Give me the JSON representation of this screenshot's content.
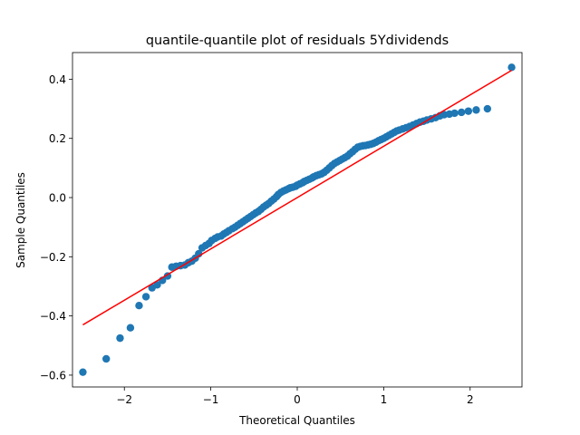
{
  "chart_data": {
    "type": "scatter",
    "title": "quantile-quantile plot of residuals 5Ydividends",
    "xlabel": "Theoretical Quantiles",
    "ylabel": "Sample Quantiles",
    "xlim": [
      -2.6,
      2.6
    ],
    "ylim": [
      -0.64,
      0.49
    ],
    "xticks": [
      -2,
      -1,
      0,
      1,
      2
    ],
    "xtick_labels": [
      "−2",
      "−1",
      "0",
      "1",
      "2"
    ],
    "yticks": [
      -0.6,
      -0.4,
      -0.2,
      0.0,
      0.2,
      0.4
    ],
    "ytick_labels": [
      "−0.6",
      "−0.4",
      "−0.2",
      "0.0",
      "0.2",
      "0.4"
    ],
    "grid": false,
    "marker_color": "#1f77b4",
    "line_color": "#ff0000",
    "series": [
      {
        "type": "scatter",
        "x": [
          -2.48,
          -2.21,
          -2.05,
          -1.93,
          -1.83,
          -1.75,
          -1.68,
          -1.62,
          -1.56,
          -1.5,
          -1.45,
          -1.4,
          -1.35,
          -1.3,
          -1.26,
          -1.22,
          -1.18,
          -1.14,
          -1.1,
          -1.06,
          -1.02,
          -0.99,
          -0.95,
          -0.92,
          -0.88,
          -0.85,
          -0.82,
          -0.79,
          -0.75,
          -0.72,
          -0.69,
          -0.66,
          -0.63,
          -0.6,
          -0.57,
          -0.54,
          -0.51,
          -0.48,
          -0.45,
          -0.42,
          -0.39,
          -0.36,
          -0.33,
          -0.3,
          -0.27,
          -0.24,
          -0.22,
          -0.19,
          -0.16,
          -0.13,
          -0.1,
          -0.08,
          -0.05,
          -0.02,
          0.0,
          0.03,
          0.06,
          0.08,
          0.11,
          0.14,
          0.17,
          0.19,
          0.22,
          0.25,
          0.28,
          0.31,
          0.34,
          0.37,
          0.4,
          0.43,
          0.46,
          0.49,
          0.52,
          0.55,
          0.58,
          0.61,
          0.64,
          0.67,
          0.7,
          0.73,
          0.76,
          0.79,
          0.82,
          0.85,
          0.88,
          0.91,
          0.94,
          0.97,
          1.0,
          1.03,
          1.06,
          1.09,
          1.12,
          1.15,
          1.18,
          1.22,
          1.26,
          1.3,
          1.34,
          1.38,
          1.42,
          1.46,
          1.5,
          1.55,
          1.6,
          1.65,
          1.7,
          1.76,
          1.82,
          1.9,
          1.98,
          2.07,
          2.2,
          2.48
        ],
        "y": [
          -0.59,
          -0.545,
          -0.475,
          -0.44,
          -0.365,
          -0.335,
          -0.305,
          -0.295,
          -0.28,
          -0.265,
          -0.235,
          -0.232,
          -0.23,
          -0.228,
          -0.22,
          -0.215,
          -0.205,
          -0.19,
          -0.17,
          -0.162,
          -0.155,
          -0.145,
          -0.138,
          -0.133,
          -0.13,
          -0.123,
          -0.118,
          -0.112,
          -0.105,
          -0.1,
          -0.094,
          -0.088,
          -0.082,
          -0.076,
          -0.07,
          -0.064,
          -0.058,
          -0.052,
          -0.047,
          -0.04,
          -0.032,
          -0.026,
          -0.02,
          -0.012,
          -0.005,
          0.003,
          0.01,
          0.017,
          0.022,
          0.026,
          0.03,
          0.033,
          0.035,
          0.038,
          0.042,
          0.046,
          0.05,
          0.054,
          0.058,
          0.062,
          0.066,
          0.07,
          0.074,
          0.077,
          0.08,
          0.085,
          0.092,
          0.1,
          0.108,
          0.115,
          0.12,
          0.125,
          0.13,
          0.135,
          0.14,
          0.148,
          0.155,
          0.163,
          0.17,
          0.173,
          0.175,
          0.176,
          0.178,
          0.18,
          0.183,
          0.187,
          0.192,
          0.196,
          0.2,
          0.205,
          0.21,
          0.215,
          0.22,
          0.225,
          0.228,
          0.232,
          0.236,
          0.24,
          0.245,
          0.25,
          0.255,
          0.258,
          0.262,
          0.266,
          0.27,
          0.276,
          0.28,
          0.282,
          0.285,
          0.288,
          0.292,
          0.296,
          0.3,
          0.44
        ]
      },
      {
        "type": "line",
        "x": [
          -2.48,
          2.48
        ],
        "y": [
          -0.43,
          0.43
        ]
      }
    ]
  }
}
